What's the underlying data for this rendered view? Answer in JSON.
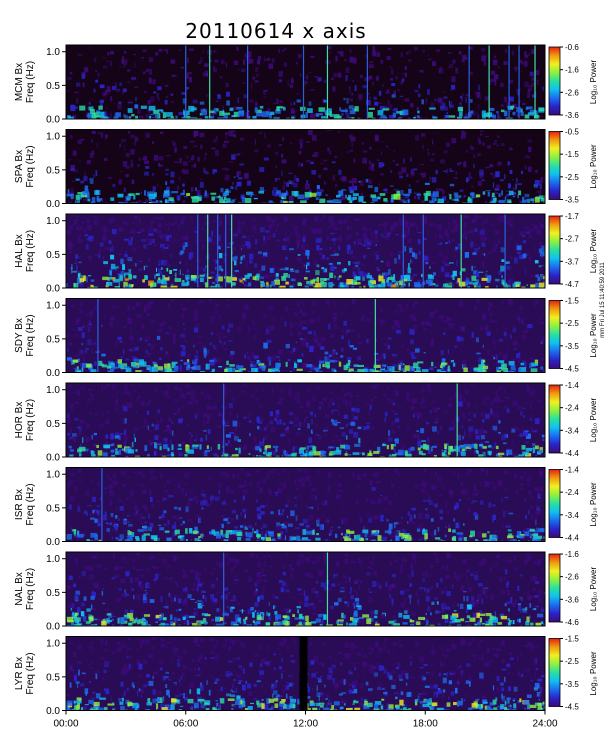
{
  "chart_data": {
    "type": "heatmap",
    "title": "20110614  x axis",
    "xlabel": "",
    "xlim": [
      0,
      24
    ],
    "x_tick_labels": [
      "00:00",
      "06:00",
      "12:00",
      "18:00",
      "24:00"
    ],
    "x_tick_hours": [
      0,
      6,
      12,
      18,
      24
    ],
    "ylim": [
      0,
      1.1
    ],
    "y_tick_labels": [
      "0.0",
      "0.5",
      "1.0"
    ],
    "y_tick_values": [
      0,
      0.5,
      1.0
    ],
    "colorbar_label": "Log₁₀ Power",
    "side_note": "mm Fri Jul 15 11:40:59 2011",
    "colormap": [
      "#3c0a78",
      "#2a24c8",
      "#1c6cf0",
      "#10c0f0",
      "#2ae0a0",
      "#90f040",
      "#f0f020",
      "#f09a10",
      "#e82010"
    ],
    "panels": [
      {
        "ylabel": "MCM Bx\nFreq (Hz)",
        "cb_min": -3.6,
        "cb_max": -0.6,
        "cb_ticks": [
          "-0.6",
          "-1.6",
          "-2.6",
          "-3.6"
        ],
        "activity": 0.15,
        "spikes_hours": [
          6.0,
          7.2,
          9.1,
          11.9,
          13.1,
          15.1,
          20.2,
          21.2,
          22.2,
          22.7,
          23.5
        ],
        "gap_hours": []
      },
      {
        "ylabel": "SPA Bx\nFreq (Hz)",
        "cb_min": -3.5,
        "cb_max": -0.5,
        "cb_ticks": [
          "-0.5",
          "-1.5",
          "-2.5",
          "-3.5"
        ],
        "activity": 0.2,
        "spikes_hours": [],
        "gap_hours": []
      },
      {
        "ylabel": "HAL Bx\nFreq (Hz)",
        "cb_min": -4.7,
        "cb_max": -1.7,
        "cb_ticks": [
          "-1.7",
          "-2.7",
          "-3.7",
          "-4.7"
        ],
        "activity": 0.55,
        "spikes_hours": [
          6.6,
          7.1,
          7.6,
          8.0,
          8.3,
          16.9,
          17.9,
          19.8,
          22.0
        ],
        "gap_hours": []
      },
      {
        "ylabel": "SDY Bx\nFreq (Hz)",
        "cb_min": -4.5,
        "cb_max": -1.5,
        "cb_ticks": [
          "-1.5",
          "-2.5",
          "-3.5",
          "-4.5"
        ],
        "activity": 0.3,
        "spikes_hours": [
          1.6,
          15.5
        ],
        "gap_hours": []
      },
      {
        "ylabel": "HOR Bx\nFreq (Hz)",
        "cb_min": -4.4,
        "cb_max": -1.4,
        "cb_ticks": [
          "-1.4",
          "-2.4",
          "-3.4",
          "-4.4"
        ],
        "activity": 0.35,
        "spikes_hours": [
          7.9,
          19.6
        ],
        "gap_hours": []
      },
      {
        "ylabel": "ISR Bx\nFreq (Hz)",
        "cb_min": -4.4,
        "cb_max": -1.4,
        "cb_ticks": [
          "-1.4",
          "-2.4",
          "-3.4",
          "-4.4"
        ],
        "activity": 0.3,
        "spikes_hours": [
          1.8
        ],
        "gap_hours": []
      },
      {
        "ylabel": "NAL Bx\nFreq (Hz)",
        "cb_min": -4.6,
        "cb_max": -1.6,
        "cb_ticks": [
          "-1.6",
          "-2.6",
          "-3.6",
          "-4.6"
        ],
        "activity": 0.4,
        "spikes_hours": [
          7.9,
          13.1
        ],
        "gap_hours": []
      },
      {
        "ylabel": "LYR Bx\nFreq (Hz)",
        "cb_min": -4.5,
        "cb_max": -1.5,
        "cb_ticks": [
          "-1.5",
          "-2.5",
          "-3.5",
          "-4.5"
        ],
        "activity": 0.4,
        "spikes_hours": [],
        "gap_hours": [
          [
            11.7,
            12.1
          ]
        ]
      }
    ]
  }
}
